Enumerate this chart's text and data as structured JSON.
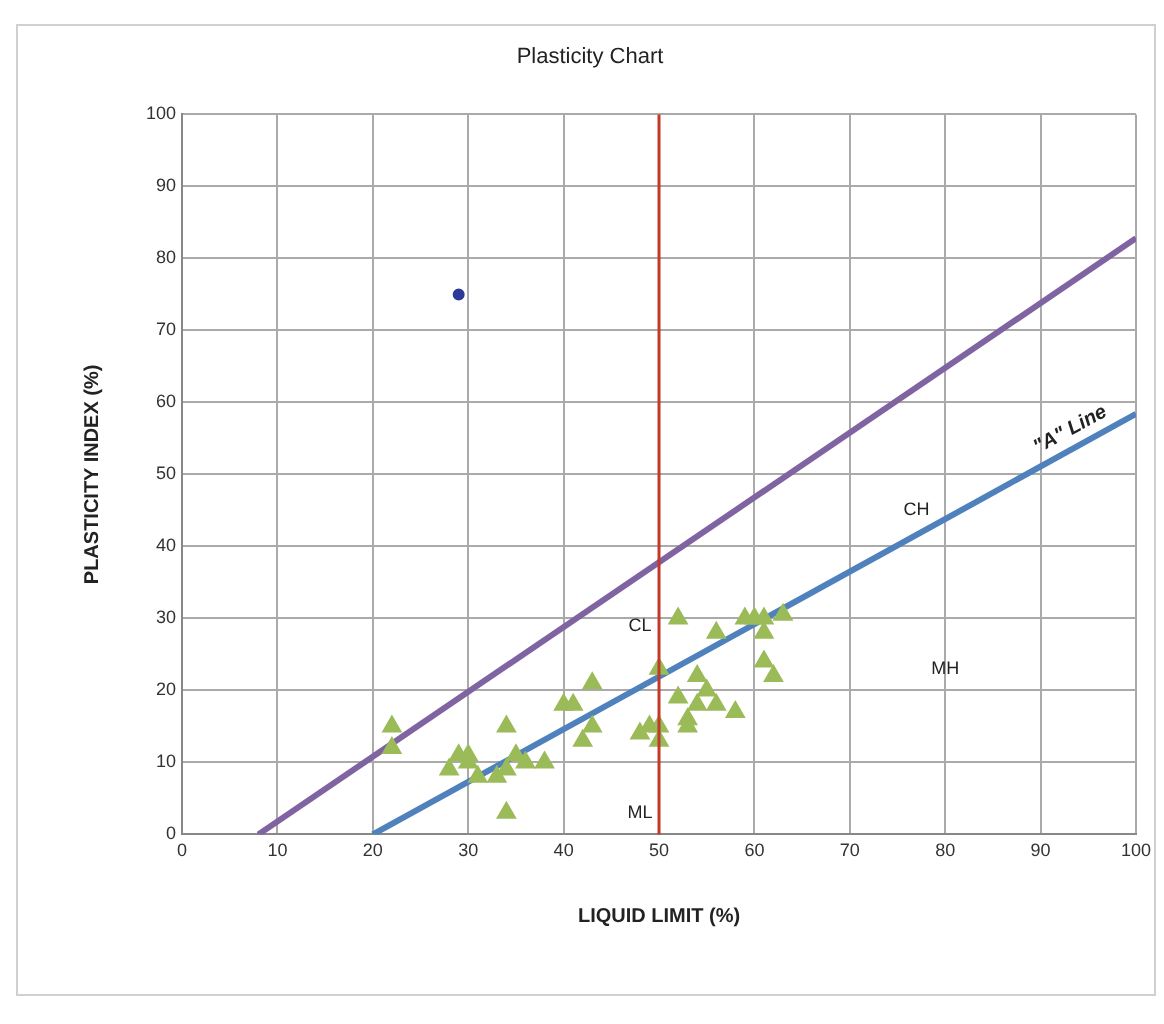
{
  "chart_data": {
    "type": "scatter",
    "title": "Plasticity Chart",
    "xlabel": "LIQUID LIMIT (%)",
    "ylabel": "PLASTICITY INDEX (%)",
    "xlim": [
      0,
      100
    ],
    "xticks": [
      0,
      10,
      20,
      30,
      40,
      50,
      60,
      70,
      80,
      90,
      100
    ],
    "ylim": [
      0,
      100
    ],
    "yticks": [
      0,
      10,
      20,
      30,
      40,
      50,
      60,
      70,
      80,
      90,
      100
    ],
    "grid": true,
    "legend": false,
    "series": [
      {
        "type": "scatter",
        "marker": "triangle",
        "color": "#9bbb59",
        "x": [
          22,
          22,
          28,
          29,
          30,
          30,
          31,
          33,
          34,
          34,
          34,
          35,
          36,
          38,
          40,
          41,
          42,
          43,
          43,
          48,
          49,
          50,
          50,
          50,
          52,
          52,
          53,
          53,
          54,
          54,
          55,
          56,
          56,
          58,
          59,
          60,
          61,
          61,
          61,
          62,
          63
        ],
        "values": [
          15,
          12,
          9,
          11,
          10,
          11,
          8,
          8,
          15,
          9,
          3,
          11,
          10,
          10,
          18,
          18,
          13,
          21,
          15,
          14,
          15,
          23,
          15,
          13,
          30,
          19,
          16,
          15,
          22,
          18,
          20,
          28,
          18,
          17,
          30,
          30,
          30,
          28,
          24,
          22,
          30.5
        ]
      },
      {
        "type": "scatter",
        "marker": "circle",
        "color": "#2e3a9a",
        "x": [
          29
        ],
        "values": [
          75
        ]
      },
      {
        "type": "line",
        "marker": "none",
        "color": "#4f81bd",
        "x": [
          20,
          100
        ],
        "values": [
          0,
          58.4
        ]
      },
      {
        "type": "line",
        "marker": "none",
        "color": "#8064a2",
        "x": [
          8,
          100
        ],
        "values": [
          0,
          82.8
        ]
      }
    ],
    "ref_lines": [
      {
        "axis": "x",
        "value": 50,
        "color": "#c0392b"
      }
    ],
    "annotations": [
      "CL",
      "CH",
      "MH",
      "ML",
      {
        "text": "\"A\" Line",
        "x": 94,
        "y": 54
      }
    ]
  }
}
